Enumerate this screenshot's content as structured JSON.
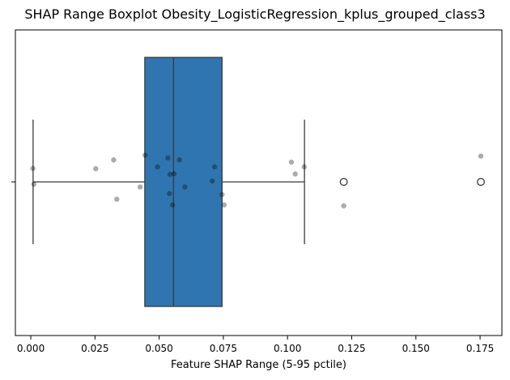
{
  "chart_data": {
    "type": "boxplot",
    "title": "SHAP Range Boxplot Obesity_LogisticRegression_kplus_grouped_class3",
    "xlabel": "Feature SHAP Range (5-95 pctile)",
    "ylabel": "",
    "xlim": [
      -0.006,
      0.1835
    ],
    "x_ticks": [
      "0.000",
      "0.025",
      "0.050",
      "0.075",
      "0.100",
      "0.125",
      "0.150",
      "0.175"
    ],
    "x_tick_values": [
      0.0,
      0.025,
      0.05,
      0.075,
      0.1,
      0.125,
      0.15,
      0.175
    ],
    "y_ticks": [
      ""
    ],
    "grid": false,
    "box": {
      "whisker_low": 0.0009,
      "q1": 0.0444,
      "median": 0.0556,
      "q3": 0.0745,
      "whisker_high": 0.1066,
      "outliers": [
        0.1219,
        0.1753
      ],
      "color": "#2f76b0"
    },
    "points": [
      {
        "x": 0.0008,
        "offset": -0.072
      },
      {
        "x": 0.0012,
        "offset": 0.012
      },
      {
        "x": 0.0253,
        "offset": -0.07
      },
      {
        "x": 0.0323,
        "offset": -0.117
      },
      {
        "x": 0.0335,
        "offset": 0.092
      },
      {
        "x": 0.0426,
        "offset": 0.027
      },
      {
        "x": 0.0445,
        "offset": -0.142
      },
      {
        "x": 0.0494,
        "offset": -0.08
      },
      {
        "x": 0.0534,
        "offset": -0.127
      },
      {
        "x": 0.054,
        "offset": 0.062
      },
      {
        "x": 0.0542,
        "offset": -0.04
      },
      {
        "x": 0.0552,
        "offset": 0.122
      },
      {
        "x": 0.0558,
        "offset": -0.043
      },
      {
        "x": 0.0579,
        "offset": -0.117
      },
      {
        "x": 0.06,
        "offset": 0.027
      },
      {
        "x": 0.0707,
        "offset": -0.005
      },
      {
        "x": 0.0716,
        "offset": -0.08
      },
      {
        "x": 0.0745,
        "offset": 0.067
      },
      {
        "x": 0.0753,
        "offset": 0.122
      },
      {
        "x": 0.1015,
        "offset": -0.105
      },
      {
        "x": 0.103,
        "offset": -0.042
      },
      {
        "x": 0.1065,
        "offset": -0.08
      },
      {
        "x": 0.1219,
        "offset": 0.127
      },
      {
        "x": 0.1753,
        "offset": -0.137
      }
    ],
    "point_color": "#000000"
  }
}
